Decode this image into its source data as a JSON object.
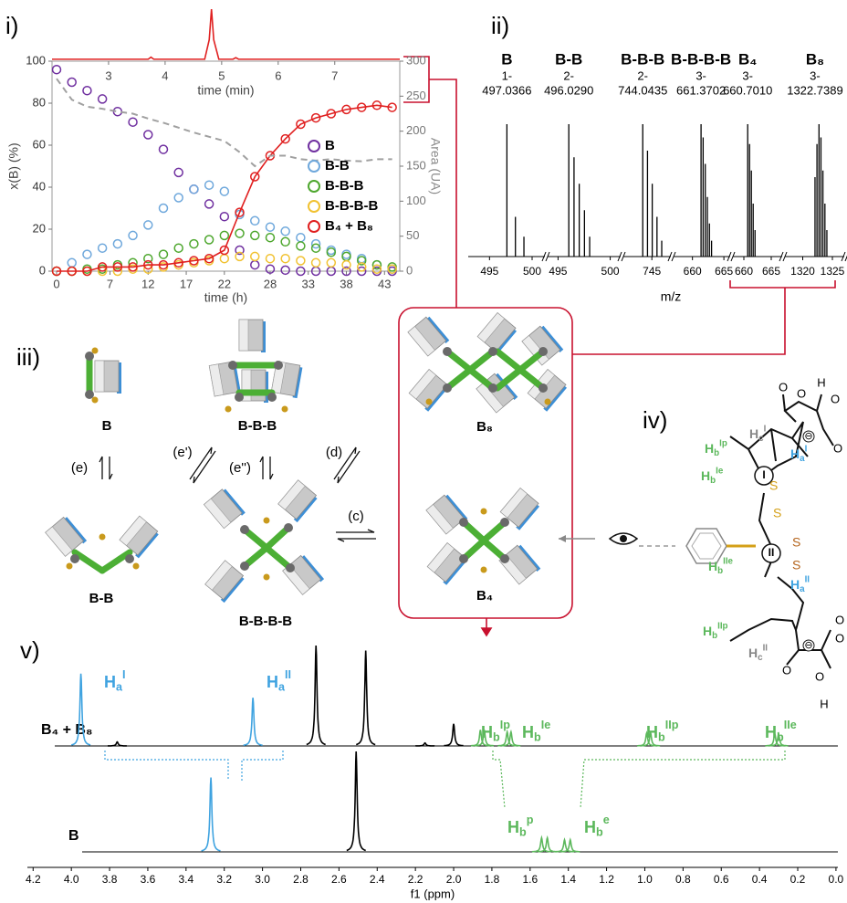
{
  "panel_labels": [
    "i)",
    "ii)",
    "iii)",
    "iv)",
    "v)"
  ],
  "chart_data": [
    {
      "type": "line",
      "marker": "circle",
      "x": [
        0,
        2,
        4,
        6,
        8,
        10,
        12,
        14,
        16,
        18,
        20,
        22,
        24,
        26,
        28,
        30,
        32,
        34,
        36,
        38,
        40,
        42,
        44
      ],
      "xlim": [
        -0.6,
        45
      ],
      "xticks": [
        0,
        7,
        12,
        17,
        22,
        28,
        33,
        38,
        43
      ],
      "xlabel": "time (h)",
      "ylabel": "x(B) (%)",
      "ylim": [
        0,
        100
      ],
      "yticks": [
        0,
        20,
        40,
        60,
        80,
        100
      ],
      "y2label": "Area (UA)",
      "y2lim": [
        0,
        300
      ],
      "y2ticks": [
        0,
        50,
        100,
        150,
        200,
        250,
        300
      ],
      "legend": "center right",
      "series": [
        {
          "name": "B",
          "color": "#7030a0",
          "values": [
            96,
            90,
            86,
            82,
            76,
            71,
            65,
            58,
            47,
            39,
            32,
            26,
            10,
            3,
            1,
            0.5,
            0,
            0,
            0,
            0,
            0,
            0,
            0
          ]
        },
        {
          "name": "B-B",
          "color": "#6fa8dc",
          "values": [
            0,
            4,
            8,
            11,
            13,
            17,
            22,
            30,
            35,
            39,
            41,
            38,
            27,
            24,
            21,
            19,
            16,
            13,
            10,
            8,
            6,
            3,
            1
          ]
        },
        {
          "name": "B-B-B",
          "color": "#4ea72e",
          "values": [
            0,
            0,
            1,
            1,
            3,
            4,
            6,
            8,
            11,
            13,
            15,
            17,
            18,
            17,
            16,
            14,
            12,
            11,
            9,
            7,
            5,
            3,
            2
          ]
        },
        {
          "name": "B-B-B-B",
          "color": "#f1c232",
          "values": [
            0,
            0,
            0,
            0,
            0,
            1,
            1,
            2,
            3,
            4,
            5,
            6,
            7,
            7,
            6,
            6,
            5,
            4,
            4,
            3,
            2,
            1,
            1
          ]
        },
        {
          "name": "B₄ + B₈",
          "color": "#e02020",
          "line": true,
          "values": [
            0,
            0,
            0,
            2,
            2,
            2,
            3,
            3,
            4,
            5,
            6,
            10,
            28,
            45,
            55,
            63,
            70,
            73,
            75,
            77,
            78,
            79,
            78
          ]
        },
        {
          "color": "#a0a0a0",
          "axis": "y2",
          "dashed": true,
          "values": [
            275,
            245,
            235,
            232,
            228,
            225,
            218,
            212,
            205,
            198,
            192,
            186,
            170,
            150,
            165,
            165,
            160,
            158,
            160,
            158,
            157,
            160,
            160
          ]
        }
      ]
    },
    {
      "type": "line",
      "x": [
        2,
        3.7,
        3.75,
        3.8,
        4.7,
        4.78,
        4.82,
        4.86,
        4.95,
        5.2,
        5.25,
        5.3,
        8.15
      ],
      "values": [
        2,
        2,
        6,
        2,
        2,
        40,
        100,
        40,
        2,
        2,
        5,
        2,
        2
      ],
      "color": "#e02020",
      "xlim": [
        2,
        8.15
      ],
      "xticks": [
        3,
        4,
        5,
        6,
        7
      ],
      "xlabel": "time (min)",
      "ylim": [
        0,
        100
      ]
    },
    {
      "type": "stick",
      "color": "#000000",
      "xlabel": "m/z",
      "ylim": [
        0,
        100
      ],
      "panels": [
        {
          "name": "B",
          "charge": "1-",
          "mz": "497.0366",
          "xlim": [
            492.5,
            501.5
          ],
          "xticks": [
            495,
            500
          ],
          "x": [
            497.04,
            498.04,
            499.04
          ],
          "values": [
            100,
            30,
            15
          ]
        },
        {
          "name": "B-B",
          "charge": "2-",
          "mz": "496.0290",
          "xlim": [
            494,
            501
          ],
          "xticks": [
            495,
            500
          ],
          "x": [
            496.03,
            496.53,
            497.03,
            497.53,
            498.03
          ],
          "values": [
            100,
            75,
            55,
            35,
            15
          ]
        },
        {
          "name": "B-B-B",
          "charge": "2-",
          "mz": "744.0435",
          "xlim": [
            742,
            747
          ],
          "xticks": [
            745
          ],
          "x": [
            744.04,
            744.54,
            745.04,
            745.54,
            746.04
          ],
          "values": [
            100,
            80,
            55,
            30,
            12
          ]
        },
        {
          "name": "B-B-B-B",
          "charge": "3-",
          "mz": "661.3702",
          "xlim": [
            657,
            666
          ],
          "xticks": [
            660,
            665
          ],
          "x": [
            661.37,
            661.7,
            662.04,
            662.37,
            662.7,
            663.04
          ],
          "values": [
            100,
            90,
            70,
            45,
            25,
            12
          ]
        },
        {
          "name": "B₄",
          "charge": "3-",
          "mz": "660.7010",
          "xlim": [
            658,
            667
          ],
          "xticks": [
            660,
            665
          ],
          "x": [
            660.7,
            661.04,
            661.37,
            661.7,
            662.04
          ],
          "values": [
            100,
            85,
            65,
            40,
            20
          ]
        },
        {
          "name": "B₈",
          "charge": "3-",
          "mz": "1322.7389",
          "xlim": [
            1317,
            1327
          ],
          "xticks": [
            1320,
            1325
          ],
          "x": [
            1322.07,
            1322.4,
            1322.74,
            1323.07,
            1323.4,
            1323.74,
            1324.07
          ],
          "values": [
            60,
            85,
            100,
            90,
            65,
            40,
            20
          ]
        }
      ]
    },
    {
      "type": "nmr",
      "xlabel": "f1 (ppm)",
      "xlim": [
        4.23,
        -0.01
      ],
      "xticks": [
        4.2,
        {
          "value": 4,
          "label": "4.0"
        },
        3.8,
        3.6,
        3.4,
        3.2,
        {
          "value": 3,
          "label": "3.0"
        },
        2.8,
        2.6,
        2.4,
        2.2,
        {
          "value": 2,
          "label": "2.0"
        },
        1.8,
        1.6,
        1.4,
        1.2,
        {
          "value": 1,
          "label": "1.0"
        },
        0.8,
        0.6,
        0.4,
        0.2,
        {
          "value": 0,
          "label": "0.0"
        }
      ],
      "ylim": [
        0,
        100
      ],
      "traces": [
        {
          "label": "B₄ + B₈",
          "x": [
            3.95,
            3.76,
            3.05,
            2.72,
            2.46,
            2.15,
            2.0,
            1.86,
            1.84,
            1.72,
            1.7,
            0.99,
            0.97,
            0.32,
            0.3
          ],
          "values": [
            72,
            4,
            48,
            100,
            95,
            3,
            22,
            16,
            16,
            14,
            14,
            13,
            13,
            12,
            12
          ],
          "colors": [
            "#3fa3e0",
            "#000000",
            "#3fa3e0",
            "#000000",
            "#000000",
            "#000000",
            "#000000",
            "#5cb85c",
            "#5cb85c",
            "#5cb85c",
            "#5cb85c",
            "#5cb85c",
            "#5cb85c",
            "#5cb85c",
            "#5cb85c"
          ]
        },
        {
          "label": "B",
          "x": [
            3.27,
            2.51,
            1.54,
            1.51,
            1.42,
            1.39
          ],
          "values": [
            74,
            100,
            14,
            14,
            12,
            12
          ],
          "colors": [
            "#3fa3e0",
            "#000000",
            "#5cb85c",
            "#5cb85c",
            "#5cb85c",
            "#5cb85c"
          ]
        }
      ],
      "peak_labels": [
        {
          "base": "H",
          "sub": "a",
          "sup": "I",
          "color": "#3fa3e0"
        },
        {
          "base": "H",
          "sub": "a",
          "sup": "II",
          "color": "#3fa3e0"
        },
        {
          "base": "H",
          "sub": "b",
          "sup": "Ip",
          "color": "#5cb85c"
        },
        {
          "base": "H",
          "sub": "b",
          "sup": "Ie",
          "color": "#5cb85c"
        },
        {
          "base": "H",
          "sub": "b",
          "sup": "IIp",
          "color": "#5cb85c"
        },
        {
          "base": "H",
          "sub": "b",
          "sup": "IIe",
          "color": "#5cb85c"
        },
        {
          "base": "H",
          "sub": "b",
          "sup": "p",
          "color": "#5cb85c"
        },
        {
          "base": "H",
          "sub": "b",
          "sup": "e",
          "color": "#5cb85c"
        }
      ]
    }
  ],
  "scheme": {
    "species": [
      "B",
      "B-B-B",
      "B-B",
      "B-B-B-B",
      "B₈",
      "B₄"
    ],
    "steps": [
      "(e)",
      "(e')",
      "(e'')",
      "(d)",
      "(c)"
    ]
  },
  "structure": {
    "labels": [
      {
        "base": "H",
        "sub": "b",
        "sup": "Ip",
        "color": "#5cb85c"
      },
      {
        "base": "H",
        "sub": "c",
        "sup": "I",
        "color": "#888888"
      },
      {
        "base": "H",
        "sub": "a",
        "sup": "I",
        "color": "#3fa3e0"
      },
      {
        "base": "H",
        "sub": "b",
        "sup": "Ie",
        "color": "#5cb85c"
      },
      {
        "base": "H",
        "sub": "b",
        "sup": "IIe",
        "color": "#5cb85c"
      },
      {
        "base": "H",
        "sub": "a",
        "sup": "II",
        "color": "#3fa3e0"
      },
      {
        "base": "H",
        "sub": "b",
        "sup": "IIp",
        "color": "#5cb85c"
      },
      {
        "base": "H",
        "sub": "c",
        "sup": "II",
        "color": "#888888"
      }
    ],
    "rings": [
      "I",
      "II"
    ],
    "sulfur": [
      {
        "text": "S",
        "color": "#d4a017"
      },
      {
        "text": "S",
        "color": "#d4a017"
      },
      {
        "text": "S",
        "color": "#b5651d"
      },
      {
        "text": "S",
        "color": "#b5651d"
      }
    ],
    "atoms": [
      "O",
      "O",
      "H",
      "O",
      "O",
      "O",
      "O",
      "H",
      "O",
      "O"
    ],
    "charges": [
      "⊖",
      "⊖"
    ]
  }
}
